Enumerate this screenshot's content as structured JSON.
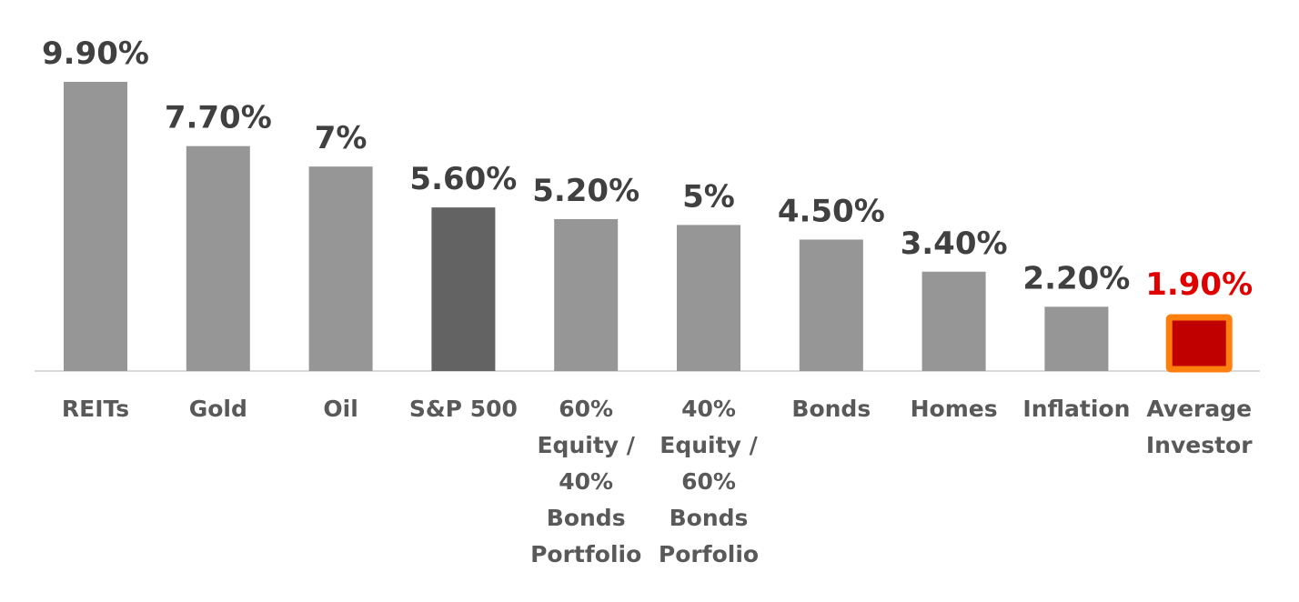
{
  "chart_data": {
    "type": "bar",
    "categories": [
      [
        "REITs"
      ],
      [
        "Gold"
      ],
      [
        "Oil"
      ],
      [
        "S&P 500"
      ],
      [
        "60%",
        "Equity /",
        "40%",
        "Bonds",
        "Portfolio"
      ],
      [
        "40%",
        "Equity /",
        "60%",
        "Bonds",
        "Porfolio"
      ],
      [
        "Bonds"
      ],
      [
        "Homes"
      ],
      [
        "Inflation"
      ],
      [
        "Average",
        "Investor"
      ]
    ],
    "values": [
      9.9,
      7.7,
      7.0,
      5.6,
      5.2,
      5.0,
      4.5,
      3.4,
      2.2,
      1.9
    ],
    "data_labels": [
      "9.90%",
      "7.70%",
      "7%",
      "5.60%",
      "5.20%",
      "5%",
      "4.50%",
      "3.40%",
      "2.20%",
      "1.90%"
    ],
    "ylim": [
      0,
      10
    ],
    "grid": false,
    "legend": "none",
    "colors": {
      "default_bar": "#969696",
      "sp500_bar": "#636363",
      "highlight_bar": "#c00000",
      "highlight_border": "#ff7f0e",
      "label_text": "#404040",
      "highlight_label": "#e00000",
      "category_text": "#595959",
      "axis_line": "#d9d9d9"
    }
  }
}
